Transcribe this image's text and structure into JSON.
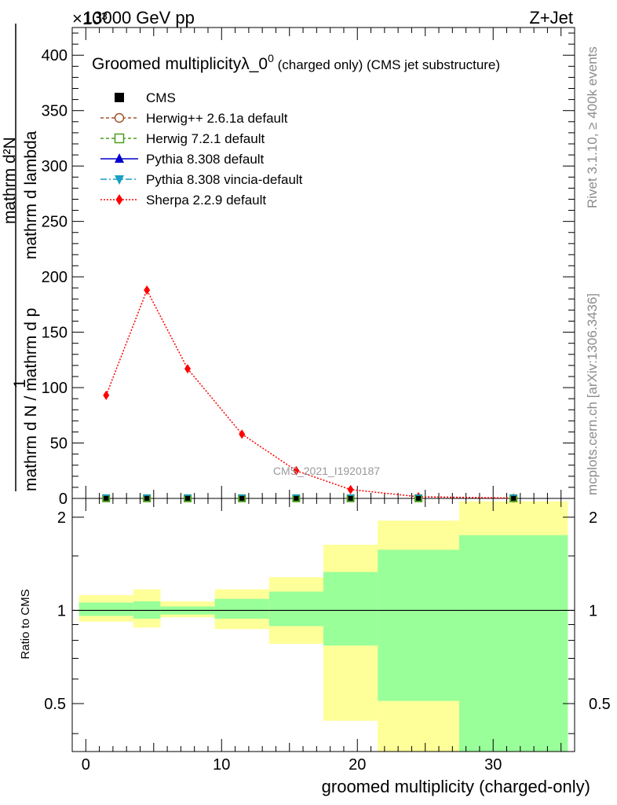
{
  "header": {
    "energy_label": "13000 GeV pp",
    "process_label": "Z+Jet",
    "exponent_label": "×10³"
  },
  "side_labels": {
    "rivet": "Rivet 3.1.10, ≥ 400k events",
    "mcplots": "mcplots.cern.ch [arXiv:1306.3436]"
  },
  "legend": {
    "title_main": "Groomed multiplicityλ_0",
    "title_sup": "0",
    "title_tail": " (charged only) (CMS jet substructure)",
    "entries": [
      {
        "label": "CMS",
        "color": "#000000"
      },
      {
        "label": "Herwig++ 2.6.1a default",
        "color": "#a0522d"
      },
      {
        "label": "Herwig 7.2.1 default",
        "color": "#4a9e1a"
      },
      {
        "label": "Pythia 8.308 default",
        "color": "#0000cc"
      },
      {
        "label": "Pythia 8.308 vincia-default",
        "color": "#1a9ec2"
      },
      {
        "label": "Sherpa 2.2.9 default",
        "color": "#ff0000"
      }
    ]
  },
  "watermark": "CMS_2021_I1920187",
  "colors": {
    "band_inner": "#99ff99",
    "band_outer": "#ffff99",
    "sherpa": "#ff0000",
    "vincia": "#1a9ec2",
    "herwig7": "#4a9e1a"
  },
  "chart_data": [
    {
      "type": "line",
      "title": "Groomed multiplicityλ_0^0 (charged only) (CMS jet substructure)",
      "ylabel": "1 / (mathrm d N / mathrm d p_T mathrm d p_T mathrm d lambda) · mathrm d²N / (mathrm d p_T mathrm d lambda)",
      "ylabel_parts": {
        "numerator": "mathrm d²N",
        "one": "1",
        "denominator": "mathrm d N / mathrm d p",
        "middle": "mathrm d p",
        "middle_tail": "mathrm d lambda"
      },
      "ylim": [
        0,
        425
      ],
      "y_multiplier": "10^3",
      "yticks": [
        0,
        50,
        100,
        150,
        200,
        250,
        300,
        350,
        400
      ],
      "xlim": [
        -1,
        36
      ],
      "series": [
        {
          "name": "Sherpa 2.2.9 default",
          "x": [
            1.5,
            4.5,
            7.5,
            11.5,
            15.5,
            19.5,
            24.5,
            31.5
          ],
          "y": [
            93,
            188,
            117,
            58,
            25,
            8,
            1.5,
            0.3
          ]
        },
        {
          "name": "CMS",
          "x": [
            1.5,
            4.5,
            7.5,
            11.5,
            15.5,
            19.5,
            24.5,
            31.5
          ],
          "y": [
            0.1,
            0.1,
            0.1,
            0.1,
            0.1,
            0.1,
            0.1,
            0.1
          ]
        }
      ]
    },
    {
      "type": "area",
      "ylabel": "Ratio to CMS",
      "xlabel": "groomed multiplicity (charged-only)",
      "xlim": [
        -1,
        36
      ],
      "ylim": [
        0.35,
        2.3
      ],
      "yticks": [
        0.5,
        1,
        2
      ],
      "xticks": [
        0,
        10,
        20,
        30
      ],
      "bins": [
        {
          "lo": -0.5,
          "hi": 3.5,
          "inner": [
            0.96,
            1.06
          ],
          "outer": [
            0.92,
            1.12
          ]
        },
        {
          "lo": 3.5,
          "hi": 5.5,
          "inner": [
            0.94,
            1.07
          ],
          "outer": [
            0.88,
            1.17
          ]
        },
        {
          "lo": 5.5,
          "hi": 9.5,
          "inner": [
            0.97,
            1.03
          ],
          "outer": [
            0.95,
            1.07
          ]
        },
        {
          "lo": 9.5,
          "hi": 13.5,
          "inner": [
            0.94,
            1.09
          ],
          "outer": [
            0.87,
            1.17
          ]
        },
        {
          "lo": 13.5,
          "hi": 17.5,
          "inner": [
            0.89,
            1.15
          ],
          "outer": [
            0.78,
            1.28
          ]
        },
        {
          "lo": 17.5,
          "hi": 21.5,
          "inner": [
            0.77,
            1.33
          ],
          "outer": [
            0.44,
            1.63
          ]
        },
        {
          "lo": 21.5,
          "hi": 27.5,
          "inner": [
            0.51,
            1.57
          ],
          "outer": [
            0.35,
            1.95
          ]
        },
        {
          "lo": 27.5,
          "hi": 35.5,
          "inner": [
            0.35,
            1.75
          ],
          "outer": [
            0.35,
            2.25
          ]
        }
      ],
      "reference_line": 1
    }
  ]
}
